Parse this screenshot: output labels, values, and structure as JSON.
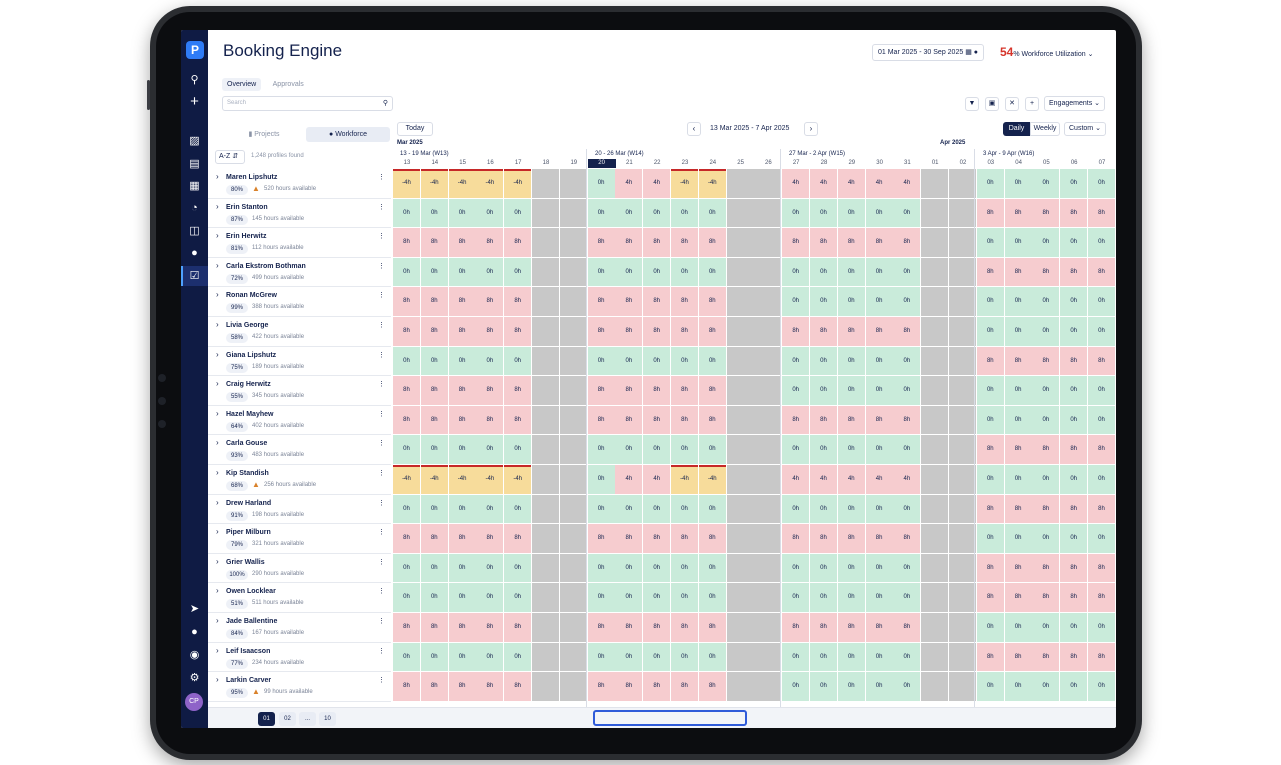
{
  "app": {
    "title": "Booking Engine"
  },
  "header": {
    "date_range": "01 Mar 2025 - 30 Sep 2025",
    "utilization_value": "54",
    "utilization_unit": "%",
    "utilization_label": "Workforce Utilization",
    "tabs": [
      {
        "label": "Overview",
        "active": true
      },
      {
        "label": "Approvals",
        "active": false
      }
    ],
    "search_placeholder": "Search",
    "engagements_label": "Engagements"
  },
  "panel": {
    "projects_label": "Projects",
    "workforce_label": "Workforce",
    "sort_label": "A-Z",
    "found_label": "1,248 profiles found"
  },
  "calendar": {
    "today_label": "Today",
    "range_label": "13 Mar 2025 - 7 Apr 2025",
    "daily_label": "Daily",
    "weekly_label": "Weekly",
    "custom_label": "Custom",
    "months": [
      "Mar 2025",
      "Apr 2025"
    ],
    "weeks": [
      "13 - 19 Mar (W13)",
      "20 - 26 Mar (W14)",
      "27 Mar - 2 Apr (W15)",
      "3 Apr - 9 Apr (W16)"
    ],
    "days": [
      "13",
      "14",
      "15",
      "16",
      "17",
      "18",
      "19",
      "20",
      "21",
      "22",
      "23",
      "24",
      "25",
      "26",
      "27",
      "28",
      "29",
      "30",
      "31",
      "01",
      "02",
      "03",
      "04",
      "05",
      "06",
      "07"
    ],
    "today_index": 7
  },
  "profiles": [
    {
      "name": "Maren Lipshutz",
      "pct": "80%",
      "hours": "520 hours available",
      "warn": true,
      "pattern": "A"
    },
    {
      "name": "Erin Stanton",
      "pct": "87%",
      "hours": "145 hours available",
      "warn": false,
      "pattern": "B"
    },
    {
      "name": "Erin Herwitz",
      "pct": "81%",
      "hours": "112 hours available",
      "warn": false,
      "pattern": "C"
    },
    {
      "name": "Carla Ekstrom Bothman",
      "pct": "72%",
      "hours": "499 hours available",
      "warn": false,
      "pattern": "B"
    },
    {
      "name": "Ronan McGrew",
      "pct": "99%",
      "hours": "388 hours available",
      "warn": false,
      "pattern": "D"
    },
    {
      "name": "Livia George",
      "pct": "58%",
      "hours": "422 hours available",
      "warn": false,
      "pattern": "C"
    },
    {
      "name": "Giana Lipshutz",
      "pct": "75%",
      "hours": "189 hours available",
      "warn": false,
      "pattern": "B"
    },
    {
      "name": "Craig Herwitz",
      "pct": "55%",
      "hours": "345 hours available",
      "warn": false,
      "pattern": "D"
    },
    {
      "name": "Hazel Mayhew",
      "pct": "64%",
      "hours": "402 hours available",
      "warn": false,
      "pattern": "C"
    },
    {
      "name": "Carla Gouse",
      "pct": "93%",
      "hours": "483 hours available",
      "warn": false,
      "pattern": "B"
    },
    {
      "name": "Kip Standish",
      "pct": "68%",
      "hours": "256 hours available",
      "warn": true,
      "pattern": "A"
    },
    {
      "name": "Drew Harland",
      "pct": "91%",
      "hours": "198 hours available",
      "warn": false,
      "pattern": "B"
    },
    {
      "name": "Piper Milburn",
      "pct": "79%",
      "hours": "321 hours available",
      "warn": false,
      "pattern": "C"
    },
    {
      "name": "Grier Wallis",
      "pct": "100%",
      "hours": "290 hours available",
      "warn": false,
      "pattern": "B"
    },
    {
      "name": "Owen Locklear",
      "pct": "51%",
      "hours": "511 hours available",
      "warn": false,
      "pattern": "B"
    },
    {
      "name": "Jade Ballentine",
      "pct": "84%",
      "hours": "167 hours available",
      "warn": false,
      "pattern": "C"
    },
    {
      "name": "Leif Isaacson",
      "pct": "77%",
      "hours": "234 hours available",
      "warn": false,
      "pattern": "B"
    },
    {
      "name": "Larkin Carver",
      "pct": "95%",
      "hours": "99 hours available",
      "warn": true,
      "pattern": "D"
    }
  ],
  "pagination": [
    "01",
    "02",
    "...",
    "10"
  ],
  "colors": {
    "available": "#c9ebda",
    "booked": "#f6cccf",
    "over": "#f7dc9b",
    "weekend": "#c8c8c8",
    "navy": "#14224d"
  },
  "icons": [
    "search-icon",
    "plus-icon",
    "store-icon",
    "book-icon",
    "document-icon",
    "pie-chart-icon",
    "report-icon",
    "team-icon",
    "calendar-check-icon",
    "rocket-icon",
    "chat-icon",
    "globe-icon",
    "gear-icon"
  ]
}
